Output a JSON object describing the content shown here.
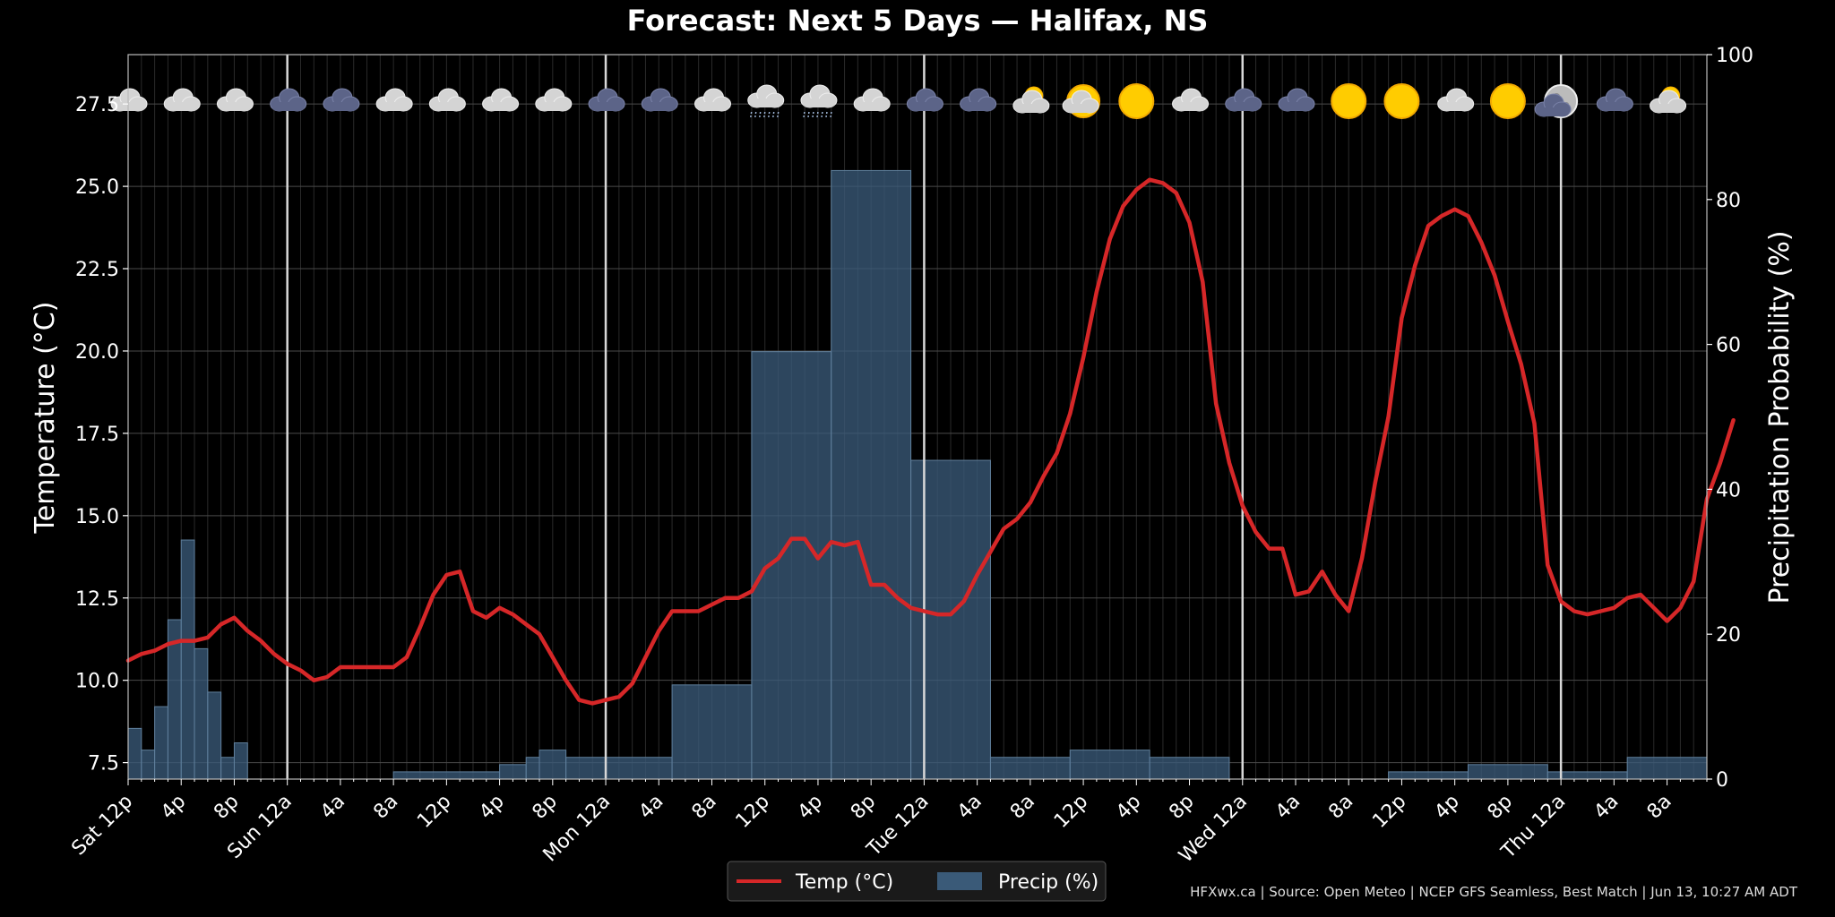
{
  "chart_data": {
    "type": "line",
    "title": "Forecast: Next 5 Days — Halifax, NS",
    "ylabel": "Temperature (°C)",
    "y2label": "Precipitation Probability (%)",
    "ylim": [
      7.0,
      29.0
    ],
    "y2lim": [
      0,
      100
    ],
    "yticks": [
      "7.5",
      "10.0",
      "12.5",
      "15.0",
      "17.5",
      "20.0",
      "22.5",
      "25.0",
      "27.5"
    ],
    "y2ticks": [
      "0",
      "20",
      "40",
      "60",
      "80",
      "100"
    ],
    "x_range_hours": [
      0,
      119
    ],
    "day_boundaries_hours": [
      12,
      36,
      60,
      84,
      108
    ],
    "xtick_labels": [
      {
        "h": 0,
        "label": "Sat 12p"
      },
      {
        "h": 4,
        "label": "4p"
      },
      {
        "h": 8,
        "label": "8p"
      },
      {
        "h": 12,
        "label": "Sun 12a"
      },
      {
        "h": 16,
        "label": "4a"
      },
      {
        "h": 20,
        "label": "8a"
      },
      {
        "h": 24,
        "label": "12p"
      },
      {
        "h": 28,
        "label": "4p"
      },
      {
        "h": 32,
        "label": "8p"
      },
      {
        "h": 36,
        "label": "Mon 12a"
      },
      {
        "h": 40,
        "label": "4a"
      },
      {
        "h": 44,
        "label": "8a"
      },
      {
        "h": 48,
        "label": "12p"
      },
      {
        "h": 52,
        "label": "4p"
      },
      {
        "h": 56,
        "label": "8p"
      },
      {
        "h": 60,
        "label": "Tue 12a"
      },
      {
        "h": 64,
        "label": "4a"
      },
      {
        "h": 68,
        "label": "8a"
      },
      {
        "h": 72,
        "label": "12p"
      },
      {
        "h": 76,
        "label": "4p"
      },
      {
        "h": 80,
        "label": "8p"
      },
      {
        "h": 84,
        "label": "Wed 12a"
      },
      {
        "h": 88,
        "label": "4a"
      },
      {
        "h": 92,
        "label": "8a"
      },
      {
        "h": 96,
        "label": "12p"
      },
      {
        "h": 100,
        "label": "4p"
      },
      {
        "h": 104,
        "label": "8p"
      },
      {
        "h": 108,
        "label": "Thu 12a"
      },
      {
        "h": 112,
        "label": "4a"
      },
      {
        "h": 116,
        "label": "8a"
      }
    ],
    "series": [
      {
        "name": "Temp (°C)",
        "color": "#d62728",
        "values": [
          10.6,
          10.8,
          10.9,
          11.1,
          11.2,
          11.2,
          11.3,
          11.7,
          11.9,
          11.5,
          11.2,
          10.8,
          10.5,
          10.3,
          10.0,
          10.1,
          10.4,
          10.4,
          10.4,
          10.4,
          10.4,
          10.7,
          11.6,
          12.6,
          13.2,
          13.3,
          12.1,
          11.9,
          12.2,
          12.0,
          11.7,
          11.4,
          10.7,
          10.0,
          9.4,
          9.3,
          9.4,
          9.5,
          9.9,
          10.7,
          11.5,
          12.1,
          12.1,
          12.1,
          12.3,
          12.5,
          12.5,
          12.7,
          13.4,
          13.7,
          14.3,
          14.3,
          13.7,
          14.2,
          14.1,
          14.2,
          12.9,
          12.9,
          12.5,
          12.2,
          12.1,
          12.0,
          12.0,
          12.4,
          13.2,
          13.9,
          14.6,
          14.9,
          15.4,
          16.2,
          16.9,
          18.1,
          19.8,
          21.8,
          23.4,
          24.4,
          24.9,
          25.2,
          25.1,
          24.8,
          23.9,
          22.1,
          18.4,
          16.6,
          15.3,
          14.5,
          14.0,
          14.0,
          12.6,
          12.7,
          13.3,
          12.6,
          12.1,
          13.7,
          16.0,
          18.0,
          21.0,
          22.6,
          23.8,
          24.1,
          24.3,
          24.1,
          23.3,
          22.3,
          20.9,
          19.6,
          17.8,
          13.5,
          12.4,
          12.1,
          12.0,
          12.1,
          12.2,
          12.5,
          12.6,
          12.2,
          11.8,
          12.2,
          13.0,
          15.5,
          16.6,
          17.9
        ]
      }
    ],
    "precip_name": "Precip (%)",
    "precip_color": "#3a5a78",
    "precip_segments": [
      {
        "x0": 0,
        "x1": 1,
        "v": 7
      },
      {
        "x0": 1,
        "x1": 2,
        "v": 4
      },
      {
        "x0": 2,
        "x1": 3,
        "v": 10
      },
      {
        "x0": 3,
        "x1": 4,
        "v": 22
      },
      {
        "x0": 4,
        "x1": 5,
        "v": 33
      },
      {
        "x0": 5,
        "x1": 6,
        "v": 18
      },
      {
        "x0": 6,
        "x1": 7,
        "v": 12
      },
      {
        "x0": 7,
        "x1": 8,
        "v": 3
      },
      {
        "x0": 8,
        "x1": 9,
        "v": 5
      },
      {
        "x0": 20,
        "x1": 28,
        "v": 1
      },
      {
        "x0": 28,
        "x1": 30,
        "v": 2
      },
      {
        "x0": 30,
        "x1": 31,
        "v": 3
      },
      {
        "x0": 31,
        "x1": 33,
        "v": 4
      },
      {
        "x0": 33,
        "x1": 41,
        "v": 3
      },
      {
        "x0": 41,
        "x1": 47,
        "v": 13
      },
      {
        "x0": 47,
        "x1": 53,
        "v": 59
      },
      {
        "x0": 53,
        "x1": 59,
        "v": 84
      },
      {
        "x0": 59,
        "x1": 65,
        "v": 44
      },
      {
        "x0": 65,
        "x1": 71,
        "v": 3
      },
      {
        "x0": 71,
        "x1": 77,
        "v": 4
      },
      {
        "x0": 77,
        "x1": 83,
        "v": 3
      },
      {
        "x0": 95,
        "x1": 101,
        "v": 1
      },
      {
        "x0": 101,
        "x1": 107,
        "v": 2
      },
      {
        "x0": 107,
        "x1": 113,
        "v": 1
      },
      {
        "x0": 113,
        "x1": 119,
        "v": 3
      }
    ],
    "weather_icons": [
      {
        "h": 0,
        "icon": "cloud-icon"
      },
      {
        "h": 4,
        "icon": "cloud-icon"
      },
      {
        "h": 8,
        "icon": "cloud-icon"
      },
      {
        "h": 12,
        "icon": "night-cloud-icon"
      },
      {
        "h": 16,
        "icon": "night-cloud-icon"
      },
      {
        "h": 20,
        "icon": "cloud-icon"
      },
      {
        "h": 24,
        "icon": "cloud-icon"
      },
      {
        "h": 28,
        "icon": "cloud-icon"
      },
      {
        "h": 32,
        "icon": "cloud-icon"
      },
      {
        "h": 36,
        "icon": "night-cloud-icon"
      },
      {
        "h": 40,
        "icon": "night-cloud-icon"
      },
      {
        "h": 44,
        "icon": "cloud-icon"
      },
      {
        "h": 48,
        "icon": "rain-cloud-icon"
      },
      {
        "h": 52,
        "icon": "rain-cloud-icon"
      },
      {
        "h": 56,
        "icon": "cloud-icon"
      },
      {
        "h": 60,
        "icon": "night-cloud-icon"
      },
      {
        "h": 64,
        "icon": "night-cloud-icon"
      },
      {
        "h": 68,
        "icon": "partly-cloudy-icon"
      },
      {
        "h": 72,
        "icon": "partly-sunny-icon"
      },
      {
        "h": 76,
        "icon": "sun-icon"
      },
      {
        "h": 80,
        "icon": "cloud-icon"
      },
      {
        "h": 84,
        "icon": "night-cloud-icon"
      },
      {
        "h": 88,
        "icon": "night-cloud-icon"
      },
      {
        "h": 92,
        "icon": "sun-icon"
      },
      {
        "h": 96,
        "icon": "sun-icon"
      },
      {
        "h": 100,
        "icon": "cloud-icon"
      },
      {
        "h": 104,
        "icon": "sun-icon"
      },
      {
        "h": 108,
        "icon": "moon-icon"
      },
      {
        "h": 112,
        "icon": "night-cloud-icon"
      },
      {
        "h": 116,
        "icon": "partly-cloudy-icon"
      }
    ],
    "legend": {
      "placement": "bottom-center",
      "entries": [
        "Temp (°C)",
        "Precip (%)"
      ]
    },
    "grid": true
  },
  "footer": "HFXwx.ca | Source: Open Meteo | NCEP GFS Seamless, Best Match | Jun 13, 10:27 AM ADT"
}
